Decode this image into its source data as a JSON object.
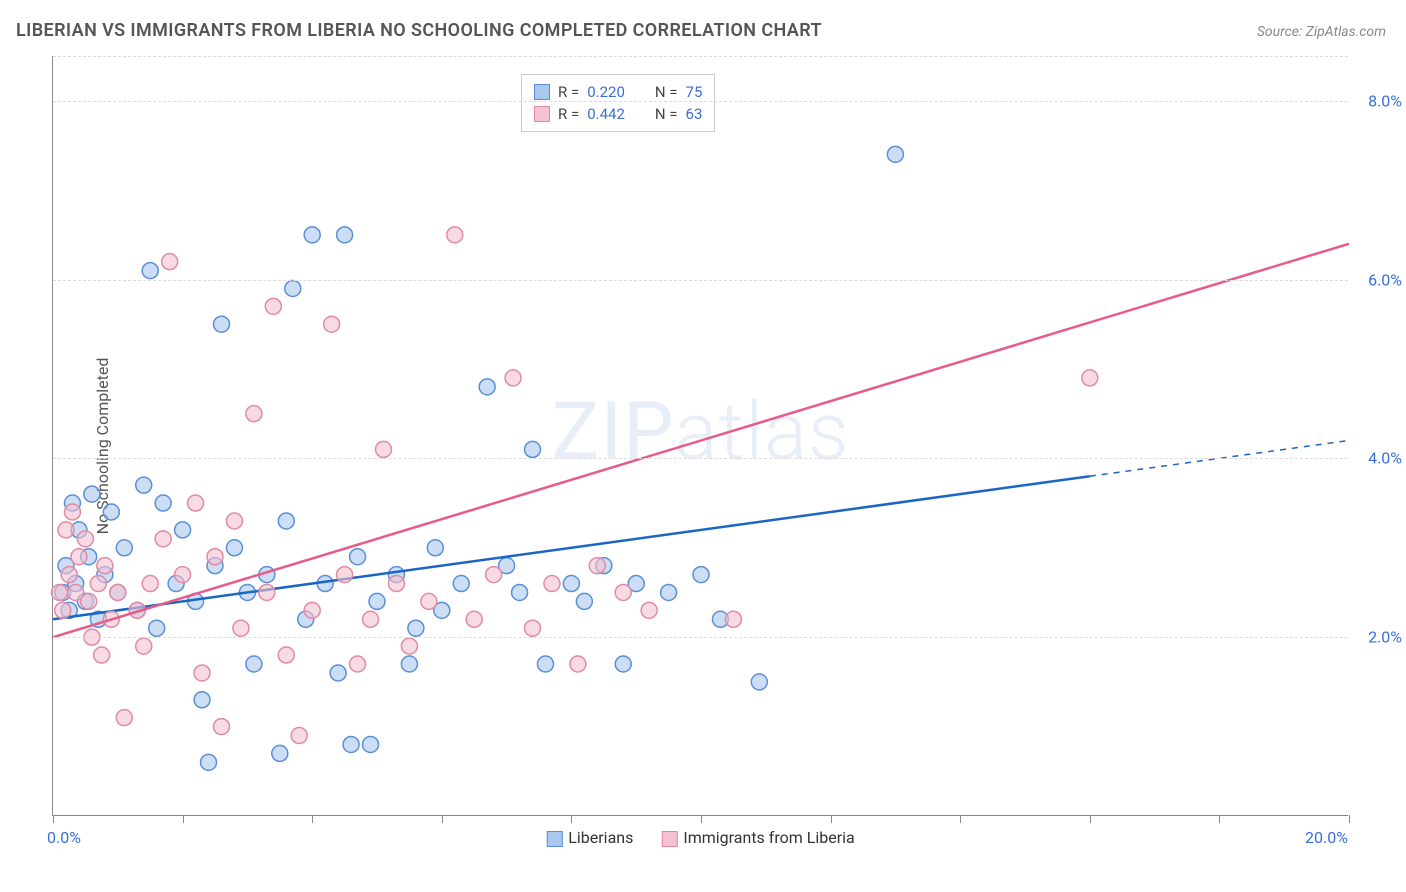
{
  "title": "LIBERIAN VS IMMIGRANTS FROM LIBERIA NO SCHOOLING COMPLETED CORRELATION CHART",
  "source": "Source: ZipAtlas.com",
  "watermark": "ZIPatlas",
  "y_axis_label": "No Schooling Completed",
  "chart": {
    "type": "scatter",
    "background_color": "#ffffff",
    "grid_color": "#dcdcdc",
    "axis_color": "#888888",
    "text_color": "#555555",
    "value_color": "#3a6fd8",
    "xlim": [
      0,
      20
    ],
    "ylim": [
      0,
      8.5
    ],
    "x_ticks": [
      0,
      2,
      4,
      6,
      8,
      10,
      12,
      14,
      16,
      18,
      20
    ],
    "x_tick_labels": {
      "0": "0.0%",
      "20": "20.0%"
    },
    "y_gridlines": [
      2,
      4,
      6,
      8,
      8.5
    ],
    "y_tick_labels": {
      "2": "2.0%",
      "4": "4.0%",
      "6": "6.0%",
      "8": "8.0%"
    },
    "marker_radius": 8,
    "marker_stroke_width": 1.5,
    "marker_fill_opacity": 0.35,
    "line_width": 2.5,
    "series": [
      {
        "name": "Liberians",
        "color_stroke": "#5a8fd6",
        "color_fill": "#a9c8ee",
        "line_color": "#1b65c4",
        "r_value": "0.220",
        "n_value": "75",
        "trend": {
          "x1": 0,
          "y1": 2.2,
          "x2": 16,
          "y2": 3.8,
          "x_dash_from": 16,
          "x_dash_to": 20,
          "y_dash_to": 4.2
        },
        "points": [
          [
            0.15,
            2.5
          ],
          [
            0.2,
            2.8
          ],
          [
            0.25,
            2.3
          ],
          [
            0.3,
            3.5
          ],
          [
            0.35,
            2.6
          ],
          [
            0.4,
            3.2
          ],
          [
            0.5,
            2.4
          ],
          [
            0.55,
            2.9
          ],
          [
            0.6,
            3.6
          ],
          [
            0.7,
            2.2
          ],
          [
            0.8,
            2.7
          ],
          [
            0.9,
            3.4
          ],
          [
            1.0,
            2.5
          ],
          [
            1.1,
            3.0
          ],
          [
            1.3,
            2.3
          ],
          [
            1.4,
            3.7
          ],
          [
            1.5,
            6.1
          ],
          [
            1.6,
            2.1
          ],
          [
            1.7,
            3.5
          ],
          [
            1.9,
            2.6
          ],
          [
            2.0,
            3.2
          ],
          [
            2.2,
            2.4
          ],
          [
            2.3,
            1.3
          ],
          [
            2.4,
            0.6
          ],
          [
            2.5,
            2.8
          ],
          [
            2.6,
            5.5
          ],
          [
            2.8,
            3.0
          ],
          [
            3.0,
            2.5
          ],
          [
            3.1,
            1.7
          ],
          [
            3.3,
            2.7
          ],
          [
            3.5,
            0.7
          ],
          [
            3.6,
            3.3
          ],
          [
            3.7,
            5.9
          ],
          [
            3.9,
            2.2
          ],
          [
            4.0,
            6.5
          ],
          [
            4.2,
            2.6
          ],
          [
            4.4,
            1.6
          ],
          [
            4.5,
            6.5
          ],
          [
            4.6,
            0.8
          ],
          [
            4.7,
            2.9
          ],
          [
            4.9,
            0.8
          ],
          [
            5.0,
            2.4
          ],
          [
            5.3,
            2.7
          ],
          [
            5.5,
            1.7
          ],
          [
            5.6,
            2.1
          ],
          [
            5.9,
            3.0
          ],
          [
            6.0,
            2.3
          ],
          [
            6.3,
            2.6
          ],
          [
            6.7,
            4.8
          ],
          [
            7.0,
            2.8
          ],
          [
            7.2,
            2.5
          ],
          [
            7.4,
            4.1
          ],
          [
            7.6,
            1.7
          ],
          [
            8.0,
            2.6
          ],
          [
            8.2,
            2.4
          ],
          [
            8.5,
            2.8
          ],
          [
            8.8,
            1.7
          ],
          [
            9.0,
            2.6
          ],
          [
            9.5,
            2.5
          ],
          [
            10.0,
            2.7
          ],
          [
            10.3,
            2.2
          ],
          [
            10.9,
            1.5
          ],
          [
            13.0,
            7.4
          ]
        ]
      },
      {
        "name": "Immigrants from Liberia",
        "color_stroke": "#e28aa4",
        "color_fill": "#f4c2d1",
        "line_color": "#e75a8a",
        "r_value": "0.442",
        "n_value": "63",
        "trend": {
          "x1": 0,
          "y1": 2.0,
          "x2": 20,
          "y2": 6.4
        },
        "points": [
          [
            0.1,
            2.5
          ],
          [
            0.15,
            2.3
          ],
          [
            0.2,
            3.2
          ],
          [
            0.25,
            2.7
          ],
          [
            0.3,
            3.4
          ],
          [
            0.35,
            2.5
          ],
          [
            0.4,
            2.9
          ],
          [
            0.5,
            3.1
          ],
          [
            0.55,
            2.4
          ],
          [
            0.6,
            2.0
          ],
          [
            0.7,
            2.6
          ],
          [
            0.75,
            1.8
          ],
          [
            0.8,
            2.8
          ],
          [
            0.9,
            2.2
          ],
          [
            1.0,
            2.5
          ],
          [
            1.1,
            1.1
          ],
          [
            1.3,
            2.3
          ],
          [
            1.4,
            1.9
          ],
          [
            1.5,
            2.6
          ],
          [
            1.7,
            3.1
          ],
          [
            1.8,
            6.2
          ],
          [
            2.0,
            2.7
          ],
          [
            2.2,
            3.5
          ],
          [
            2.3,
            1.6
          ],
          [
            2.5,
            2.9
          ],
          [
            2.6,
            1.0
          ],
          [
            2.8,
            3.3
          ],
          [
            2.9,
            2.1
          ],
          [
            3.1,
            4.5
          ],
          [
            3.3,
            2.5
          ],
          [
            3.4,
            5.7
          ],
          [
            3.6,
            1.8
          ],
          [
            3.8,
            0.9
          ],
          [
            4.0,
            2.3
          ],
          [
            4.3,
            5.5
          ],
          [
            4.5,
            2.7
          ],
          [
            4.7,
            1.7
          ],
          [
            4.9,
            2.2
          ],
          [
            5.1,
            4.1
          ],
          [
            5.3,
            2.6
          ],
          [
            5.5,
            1.9
          ],
          [
            5.8,
            2.4
          ],
          [
            6.2,
            6.5
          ],
          [
            6.5,
            2.2
          ],
          [
            6.8,
            2.7
          ],
          [
            7.1,
            4.9
          ],
          [
            7.4,
            2.1
          ],
          [
            7.7,
            2.6
          ],
          [
            8.1,
            1.7
          ],
          [
            8.4,
            2.8
          ],
          [
            8.8,
            2.5
          ],
          [
            9.2,
            2.3
          ],
          [
            10.5,
            2.2
          ],
          [
            16.0,
            4.9
          ]
        ]
      }
    ],
    "legend_bottom": [
      {
        "label": "Liberians",
        "fill": "#a9c8ee",
        "stroke": "#5a8fd6"
      },
      {
        "label": "Immigrants from Liberia",
        "fill": "#f4c2d1",
        "stroke": "#e28aa4"
      }
    ]
  }
}
